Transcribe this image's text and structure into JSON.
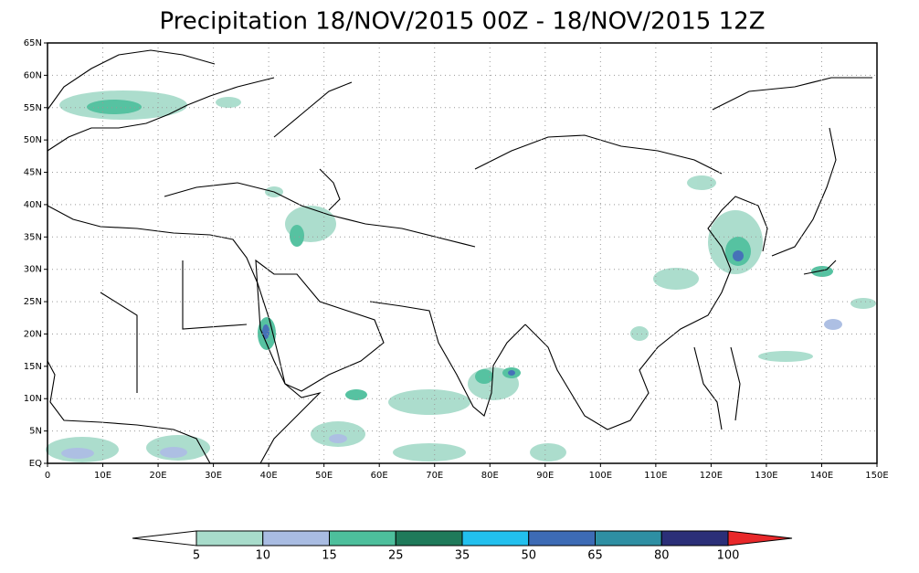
{
  "title": "Precipitation 18/NOV/2015 00Z - 18/NOV/2015 12Z",
  "map": {
    "lon_labels": [
      "0",
      "10E",
      "20E",
      "30E",
      "40E",
      "50E",
      "60E",
      "70E",
      "80E",
      "90E",
      "100E",
      "110E",
      "120E",
      "130E",
      "140E",
      "150E"
    ],
    "lat_labels": [
      "EQ",
      "5N",
      "10N",
      "15N",
      "20N",
      "25N",
      "30N",
      "35N",
      "40N",
      "45N",
      "50N",
      "55N",
      "60N",
      "65N"
    ]
  },
  "colorbar": {
    "labels": [
      "5",
      "10",
      "15",
      "25",
      "35",
      "50",
      "65",
      "80",
      "100"
    ],
    "colors": [
      "#a8dccb",
      "#a9bce2",
      "#4dbf9c",
      "#1f7a5a",
      "#22c0ee",
      "#3d6bb5",
      "#2e8fa3",
      "#2b2f78"
    ],
    "under_color": "#ffffff",
    "over_color": "#e8282a"
  }
}
